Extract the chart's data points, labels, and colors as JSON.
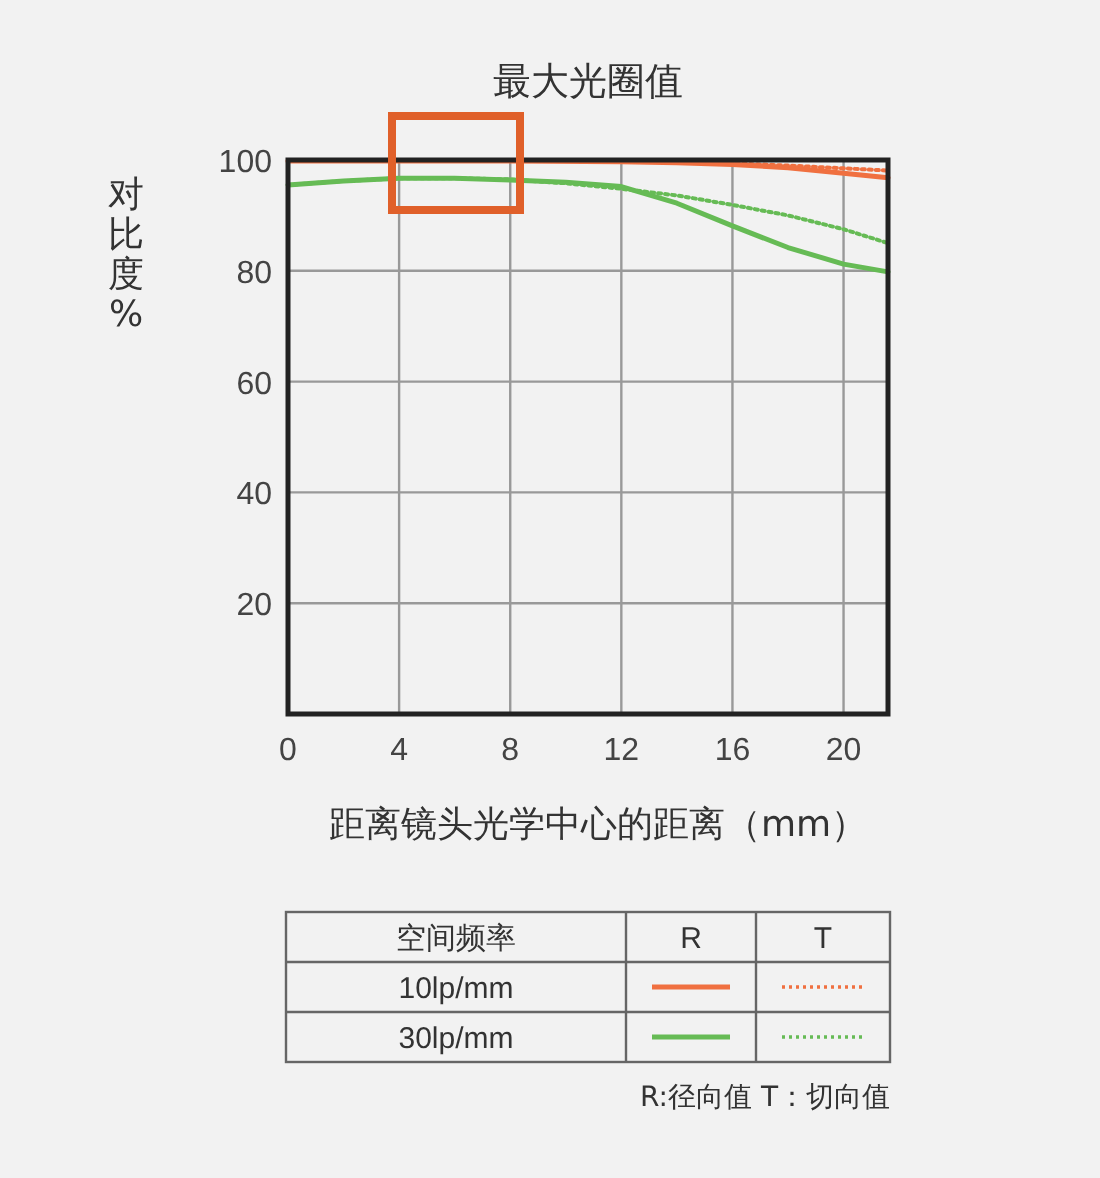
{
  "chart_data": {
    "type": "line",
    "title": "最大光圈值",
    "xlabel": "距离镜头光学中心的距离（mm）",
    "ylabel": "对比度%",
    "legend_title": "空间频率",
    "annotations": [
      "R",
      "T",
      "10lp/mm",
      "30lp/mm",
      "R:径向值 T：切向值"
    ],
    "xlim": [
      0,
      21.6
    ],
    "xticks": [
      0,
      4,
      8,
      12,
      16,
      20
    ],
    "ylim": [
      0,
      100
    ],
    "yticks": [
      20,
      40,
      60,
      80,
      100
    ],
    "grid": true,
    "series": [
      {
        "color": "#f07040",
        "line_style": "solid",
        "x": [
          0,
          4,
          8,
          12,
          14,
          16,
          18,
          20,
          21.6
        ],
        "values": [
          99.8,
          99.8,
          99.8,
          99.7,
          99.5,
          99.2,
          98.6,
          97.6,
          96.8
        ]
      },
      {
        "color": "#f07040",
        "line_style": "dotted",
        "x": [
          0,
          4,
          8,
          12,
          14,
          16,
          18,
          20,
          21.6
        ],
        "values": [
          99.8,
          99.8,
          99.8,
          99.8,
          99.6,
          99.4,
          99.0,
          98.5,
          98.1
        ]
      },
      {
        "color": "#66bb55",
        "line_style": "solid",
        "x": [
          0,
          2,
          4,
          6,
          8,
          10,
          12,
          14,
          16,
          18,
          20,
          21.6
        ],
        "values": [
          95.5,
          96.2,
          96.7,
          96.7,
          96.4,
          96.0,
          95.2,
          92.2,
          88.1,
          84.2,
          81.2,
          79.8
        ]
      },
      {
        "color": "#66bb55",
        "line_style": "dotted",
        "x": [
          0,
          2,
          4,
          6,
          8,
          10,
          12,
          14,
          16,
          18,
          20,
          21.6
        ],
        "values": [
          95.5,
          96.2,
          96.7,
          96.7,
          96.5,
          95.8,
          94.8,
          93.6,
          91.9,
          90.0,
          87.5,
          85.0
        ]
      }
    ]
  }
}
